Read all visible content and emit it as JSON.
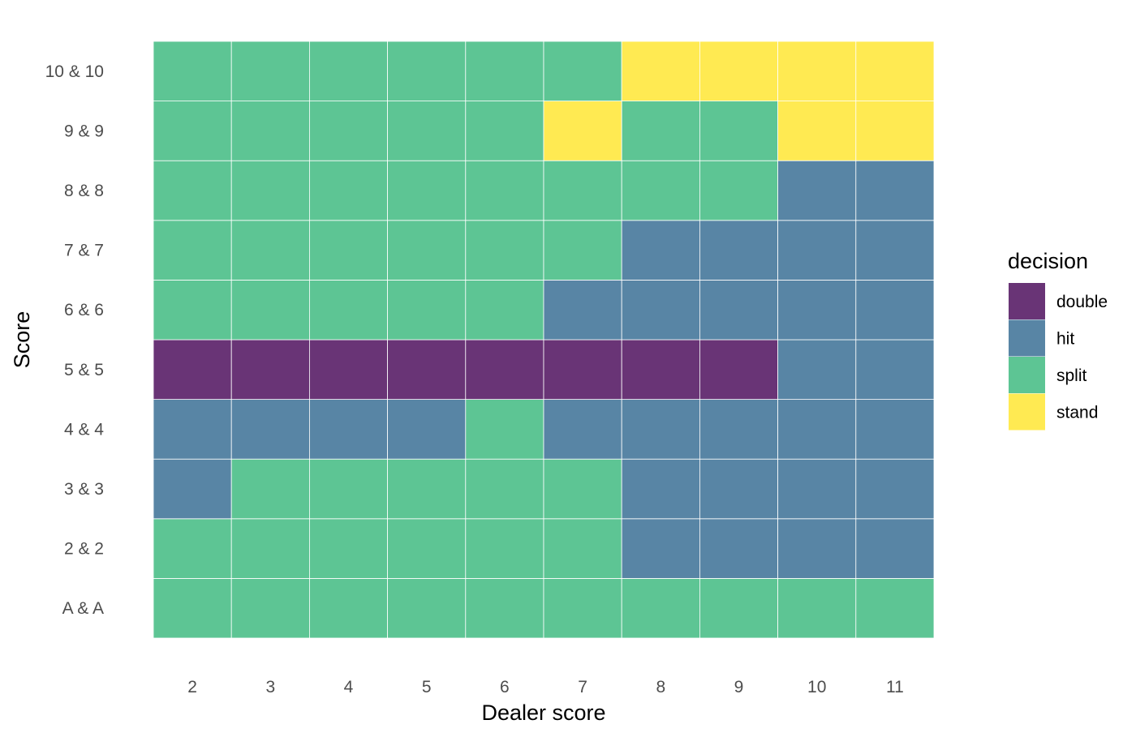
{
  "chart_data": {
    "type": "heatmap",
    "title": "",
    "xlabel": "Dealer score",
    "ylabel": "Score",
    "x_categories": [
      "2",
      "3",
      "4",
      "5",
      "6",
      "7",
      "8",
      "9",
      "10",
      "11"
    ],
    "y_categories": [
      "A & A",
      "2 & 2",
      "3 & 3",
      "4 & 4",
      "5 & 5",
      "6 & 6",
      "7 & 7",
      "8 & 8",
      "9 & 9",
      "10 & 10"
    ],
    "values": [
      [
        "split",
        "split",
        "split",
        "split",
        "split",
        "split",
        "split",
        "split",
        "split",
        "split"
      ],
      [
        "split",
        "split",
        "split",
        "split",
        "split",
        "split",
        "hit",
        "hit",
        "hit",
        "hit"
      ],
      [
        "hit",
        "split",
        "split",
        "split",
        "split",
        "split",
        "hit",
        "hit",
        "hit",
        "hit"
      ],
      [
        "hit",
        "hit",
        "hit",
        "hit",
        "split",
        "hit",
        "hit",
        "hit",
        "hit",
        "hit"
      ],
      [
        "double",
        "double",
        "double",
        "double",
        "double",
        "double",
        "double",
        "double",
        "hit",
        "hit"
      ],
      [
        "split",
        "split",
        "split",
        "split",
        "split",
        "hit",
        "hit",
        "hit",
        "hit",
        "hit"
      ],
      [
        "split",
        "split",
        "split",
        "split",
        "split",
        "split",
        "hit",
        "hit",
        "hit",
        "hit"
      ],
      [
        "split",
        "split",
        "split",
        "split",
        "split",
        "split",
        "split",
        "split",
        "hit",
        "hit"
      ],
      [
        "split",
        "split",
        "split",
        "split",
        "split",
        "stand",
        "split",
        "split",
        "stand",
        "stand"
      ],
      [
        "split",
        "split",
        "split",
        "split",
        "split",
        "split",
        "stand",
        "stand",
        "stand",
        "stand"
      ]
    ],
    "legend": {
      "title": "decision",
      "position": "right",
      "entries": [
        {
          "label": "double",
          "color": "#693476"
        },
        {
          "label": "hit",
          "color": "#5885a5"
        },
        {
          "label": "split",
          "color": "#5dc594"
        },
        {
          "label": "stand",
          "color": "#ffea52"
        }
      ]
    },
    "grid": false
  }
}
